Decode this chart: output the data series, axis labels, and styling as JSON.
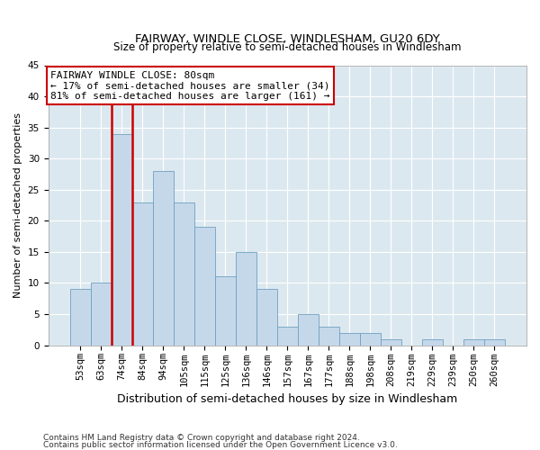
{
  "title": "FAIRWAY, WINDLE CLOSE, WINDLESHAM, GU20 6DY",
  "subtitle": "Size of property relative to semi-detached houses in Windlesham",
  "xlabel": "Distribution of semi-detached houses by size in Windlesham",
  "ylabel": "Number of semi-detached properties",
  "categories": [
    "53sqm",
    "63sqm",
    "74sqm",
    "84sqm",
    "94sqm",
    "105sqm",
    "115sqm",
    "125sqm",
    "136sqm",
    "146sqm",
    "157sqm",
    "167sqm",
    "177sqm",
    "188sqm",
    "198sqm",
    "208sqm",
    "219sqm",
    "229sqm",
    "239sqm",
    "250sqm",
    "260sqm"
  ],
  "values": [
    9,
    10,
    34,
    23,
    28,
    23,
    19,
    11,
    15,
    9,
    3,
    5,
    3,
    2,
    2,
    1,
    0,
    1,
    0,
    1,
    1
  ],
  "bar_color": "#c5d8ea",
  "bar_edge_color": "#6fa0c0",
  "highlight_bar_index": 2,
  "highlight_edge_color": "#cc0000",
  "annotation_line1": "FAIRWAY WINDLE CLOSE: 80sqm",
  "annotation_line2": "← 17% of semi-detached houses are smaller (34)",
  "annotation_line3": "81% of semi-detached houses are larger (161) →",
  "ylim": [
    0,
    45
  ],
  "yticks": [
    0,
    5,
    10,
    15,
    20,
    25,
    30,
    35,
    40,
    45
  ],
  "background_color": "#ffffff",
  "plot_bg_color": "#dce8f0",
  "grid_color": "#ffffff",
  "footnote1": "Contains HM Land Registry data © Crown copyright and database right 2024.",
  "footnote2": "Contains public sector information licensed under the Open Government Licence v3.0.",
  "title_fontsize": 9.5,
  "subtitle_fontsize": 8.5,
  "xlabel_fontsize": 9,
  "ylabel_fontsize": 8,
  "tick_fontsize": 7.5,
  "annotation_fontsize": 8,
  "footnote_fontsize": 6.5
}
